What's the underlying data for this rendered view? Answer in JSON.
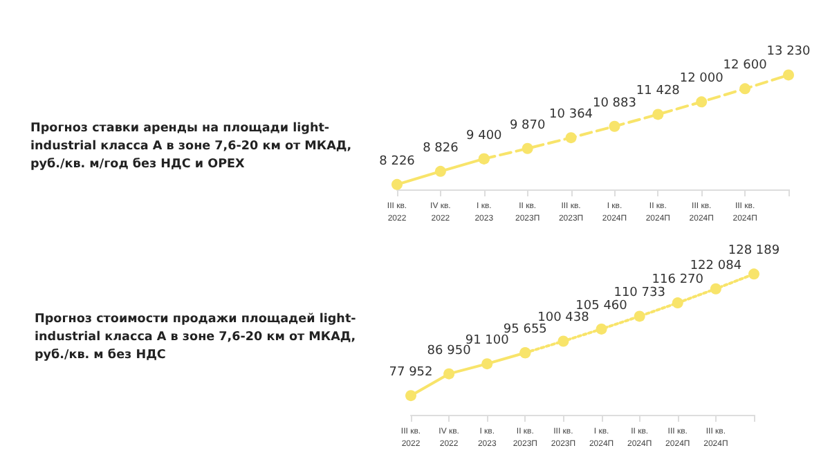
{
  "chart_data": [
    {
      "type": "line",
      "title": "Прогноз ставки аренды на площади light-industrial класса А в зоне 7,6-20 км от МКАД, руб./кв. м/год без НДС и OPEX",
      "categories": [
        "III кв. 2022",
        "IV кв. 2022",
        "I кв. 2023",
        "II кв. 2023П",
        "III кв. 2023П",
        "I кв. 2024П",
        "II кв. 2024П",
        "III кв. 2024П",
        "III кв. 2024П",
        null
      ],
      "series": [
        {
          "color": "#f8e46a",
          "line_style": "solid",
          "values": [
            8226,
            8826,
            9400,
            null,
            null,
            null,
            null,
            null,
            null,
            null
          ],
          "value_labels": [
            "8 226",
            "8 826",
            "9 400",
            null,
            null,
            null,
            null,
            null,
            null,
            null
          ]
        },
        {
          "color": "#f8e46a",
          "line_style": "dashed",
          "values": [
            null,
            null,
            9400,
            9870,
            10364,
            10883,
            11428,
            12000,
            12600,
            13230
          ],
          "value_labels": [
            null,
            null,
            null,
            "9 870",
            "10 364",
            "10 883",
            "11 428",
            "12 000",
            "12 600",
            "13 230"
          ]
        }
      ],
      "marker": "circle",
      "grid": false,
      "tick_labels": "x"
    },
    {
      "type": "line",
      "title": "Прогноз стоимости продажи площадей light-industrial класса А в зоне 7,6-20 км от МКАД, руб./кв. м без НДС",
      "categories": [
        "III кв. 2022",
        "IV кв. 2022",
        "I кв. 2023",
        "II кв. 2023П",
        "III кв. 2023П",
        "I кв. 2024П",
        "II кв. 2024П",
        "III кв. 2024П",
        "III кв. 2024П",
        null
      ],
      "series": [
        {
          "color": "#f8e46a",
          "line_style": "solid",
          "values": [
            77952,
            86950,
            91100,
            95655,
            null,
            null,
            null,
            null,
            null,
            null
          ],
          "value_labels": [
            "77 952",
            "86 950",
            "91 100",
            "95 655",
            null,
            null,
            null,
            null,
            null,
            null
          ]
        },
        {
          "color": "#f8e46a",
          "line_style": "dotted",
          "values": [
            null,
            null,
            null,
            95655,
            100438,
            105460,
            110733,
            116270,
            122084,
            128189
          ],
          "value_labels": [
            null,
            null,
            null,
            null,
            "100 438",
            "105 460",
            "110 733",
            "116 270",
            "122 084",
            "128 189"
          ]
        }
      ],
      "marker": "circle",
      "grid": false,
      "tick_labels": "x"
    }
  ]
}
